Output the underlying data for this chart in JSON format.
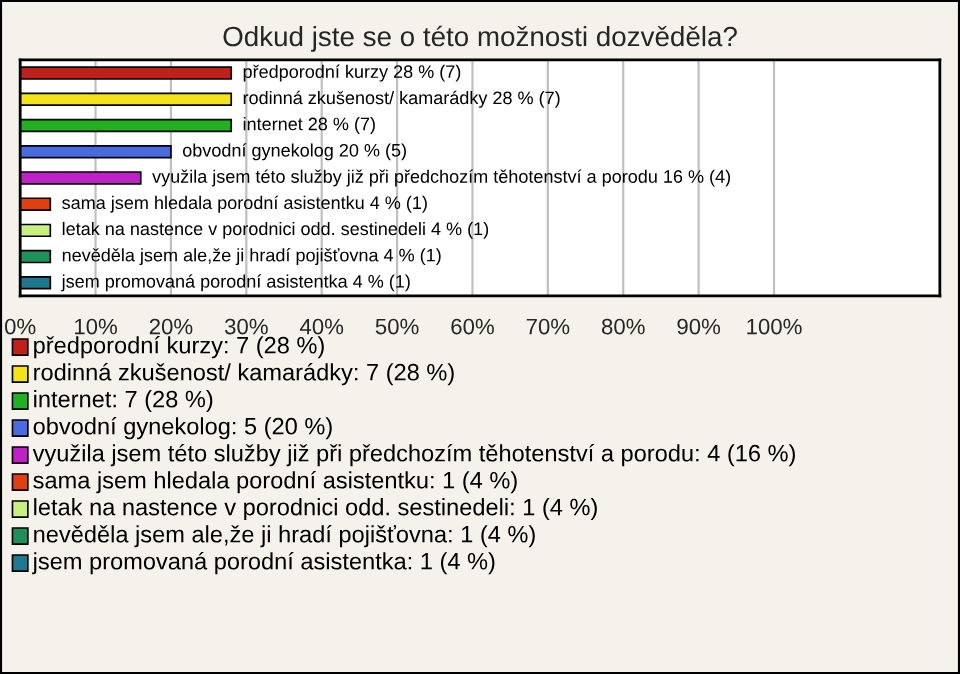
{
  "chart_data": {
    "type": "bar",
    "orientation": "horizontal",
    "title": "Odkud jste se o této možnosti dozvěděla?",
    "categories": [
      "předporodní kurzy",
      "rodinná zkušenost/ kamarádky",
      "internet",
      "obvodní gynekolog",
      "využila jsem této služby již při předchozím těhotenství a porodu",
      "sama jsem hledala porodní asistentku",
      "letak na nastence v porodnici odd. sestinedeli",
      "nevěděla jsem ale,že ji hradí pojišťovna",
      "jsem promovaná porodní asistentka"
    ],
    "values": [
      28,
      28,
      28,
      20,
      16,
      4,
      4,
      4,
      4
    ],
    "value_labels": [
      "28 % (7)",
      "28 % (7)",
      "28 % (7)",
      "20 % (5)",
      "16 % (4)",
      "4 % (1)",
      "4 % (1)",
      "4 % (1)",
      "4 % (1)"
    ],
    "colors": [
      "#c0201a",
      "#f5e31a",
      "#22b022",
      "#4a6be0",
      "#c020c8",
      "#e04010",
      "#c8f080",
      "#20905a",
      "#207890"
    ],
    "xlim": [
      0,
      122
    ],
    "xticks": [
      {
        "value": 0,
        "label": "0%"
      },
      {
        "value": 10,
        "label": "10%"
      },
      {
        "value": 20,
        "label": "20%"
      },
      {
        "value": 30,
        "label": "30%"
      },
      {
        "value": 40,
        "label": "40%"
      },
      {
        "value": 50,
        "label": "50%"
      },
      {
        "value": 60,
        "label": "60%"
      },
      {
        "value": 70,
        "label": "70%"
      },
      {
        "value": 80,
        "label": "80%"
      },
      {
        "value": 90,
        "label": "90%"
      },
      {
        "value": 100,
        "label": "100%"
      }
    ],
    "grid": "x",
    "annotations": [
      "předporodní kurzy: 7 (28 %)",
      "rodinná zkušenost/ kamarádky: 7 (28 %)",
      "internet: 7 (28 %)",
      "obvodní gynekolog: 5 (20 %)",
      "využila jsem této služby již při předchozím těhotenství a porodu: 4 (16 %)",
      "sama jsem hledala porodní asistentku: 1 (4 %)",
      "letak na nastence v porodnici odd. sestinedeli: 1 (4 %)",
      "nevěděla jsem ale,že ji hradí pojišťovna: 1 (4 %)",
      "jsem promovaná porodní asistentka: 1 (4 %)"
    ]
  }
}
